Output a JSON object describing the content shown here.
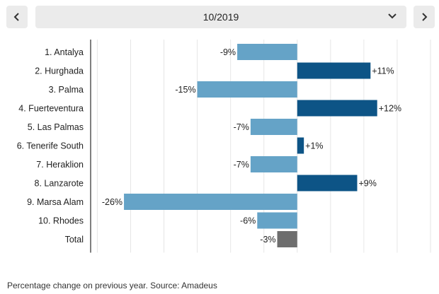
{
  "navigation": {
    "prev_icon": "chevron-left-icon",
    "next_icon": "chevron-right-icon",
    "dropdown_icon": "chevron-down-icon",
    "selected_period": "10/2019"
  },
  "footnote": "Percentage change on previous year. Source: Amadeus",
  "colors": {
    "negative": "#65a3c7",
    "positive": "#0d5486",
    "total": "#6e6e6e",
    "grid": "#e6e6e6",
    "axis": "#555555",
    "button_bg": "#ebebeb"
  },
  "chart_data": {
    "type": "bar",
    "orientation": "horizontal",
    "categories": [
      "1. Antalya",
      "2. Hurghada",
      "3. Palma",
      "4. Fuerteventura",
      "5. Las Palmas",
      "6. Tenerife South",
      "7. Heraklion",
      "8. Lanzarote",
      "9. Marsa Alam",
      "10. Rhodes",
      "Total"
    ],
    "values": [
      -9,
      11,
      -15,
      12,
      -7,
      1,
      -7,
      9,
      -26,
      -6,
      -3
    ],
    "value_labels": [
      "-9%",
      "+11%",
      "-15%",
      "+12%",
      "-7%",
      "+1%",
      "-7%",
      "+9%",
      "-26%",
      "-6%",
      "-3%"
    ],
    "unit": "%",
    "xlim": [
      -31,
      20
    ],
    "grid": true,
    "title": "",
    "xlabel": "",
    "ylabel": ""
  }
}
